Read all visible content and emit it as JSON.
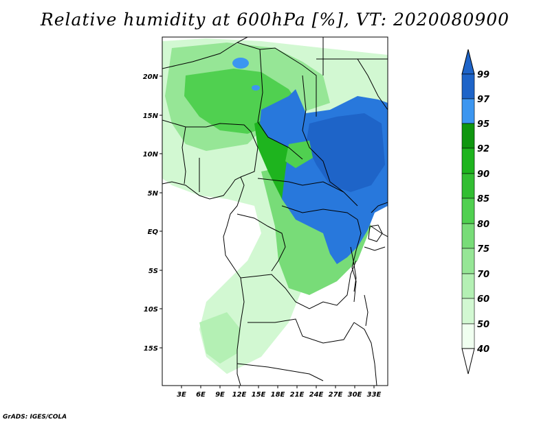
{
  "title": "Relative humidity at 600hPa [%], VT: 2020080900",
  "footer": "GrADS: IGES/COLA",
  "map": {
    "lon_range": [
      0,
      35
    ],
    "lat_range": [
      -20,
      25
    ],
    "lon_ticks": [
      "3E",
      "6E",
      "9E",
      "12E",
      "15E",
      "18E",
      "21E",
      "24E",
      "27E",
      "30E",
      "33E"
    ],
    "lat_ticks": [
      "20N",
      "15N",
      "10N",
      "5N",
      "EQ",
      "5S",
      "10S",
      "15S"
    ]
  },
  "colorbar": {
    "levels": [
      "40",
      "50",
      "60",
      "70",
      "75",
      "80",
      "85",
      "90",
      "92",
      "95",
      "97",
      "99"
    ],
    "colors": [
      "#f0fff0",
      "#d2f8d2",
      "#b4f0b4",
      "#96e696",
      "#78dc78",
      "#50d050",
      "#32be32",
      "#1eb41e",
      "#0f960f",
      "#3c96f0",
      "#2878dc",
      "#1e64c8"
    ]
  }
}
